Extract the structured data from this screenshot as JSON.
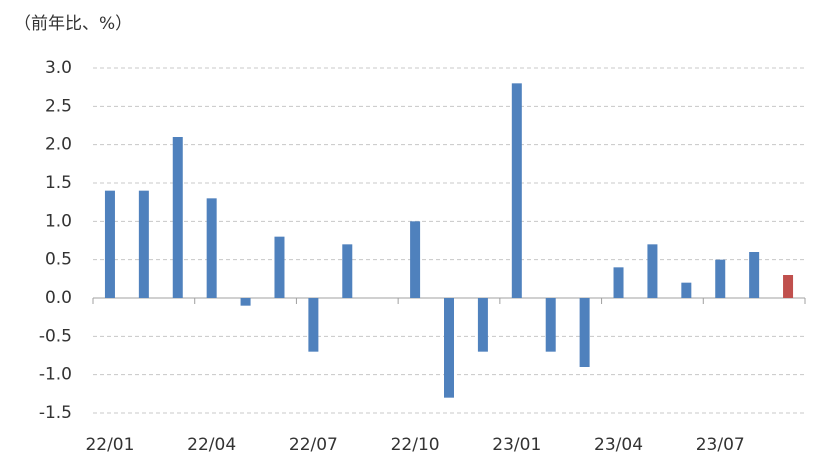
{
  "chart_data": {
    "type": "bar",
    "title": "（前年比、%）",
    "categories": [
      "22/01",
      null,
      null,
      "22/04",
      null,
      null,
      "22/07",
      null,
      null,
      "22/10",
      null,
      null,
      "23/01",
      null,
      null,
      "23/04",
      null,
      null,
      "23/07",
      null,
      null
    ],
    "values": [
      1.4,
      1.4,
      2.1,
      1.3,
      -0.1,
      0.8,
      -0.7,
      0.7,
      0.0,
      1.0,
      -1.3,
      -0.7,
      2.8,
      -0.7,
      -0.9,
      0.4,
      0.7,
      0.2,
      0.5,
      0.6,
      0.3
    ],
    "colors": [
      "#4f81bd",
      "#4f81bd",
      "#4f81bd",
      "#4f81bd",
      "#4f81bd",
      "#4f81bd",
      "#4f81bd",
      "#4f81bd",
      "#4f81bd",
      "#4f81bd",
      "#4f81bd",
      "#4f81bd",
      "#4f81bd",
      "#4f81bd",
      "#4f81bd",
      "#4f81bd",
      "#4f81bd",
      "#4f81bd",
      "#4f81bd",
      "#4f81bd",
      "#c0504d"
    ],
    "ylim": [
      -1.5,
      3.0
    ],
    "yticks": [
      {
        "value": -1.5,
        "label": "-1.5"
      },
      {
        "value": -1.0,
        "label": "-1.0"
      },
      {
        "value": -0.5,
        "label": "-0.5"
      },
      {
        "value": 0,
        "label": "0.0"
      },
      {
        "value": 0.5,
        "label": "0.5"
      },
      {
        "value": 1.0,
        "label": "1.0"
      },
      {
        "value": 1.5,
        "label": "1.5"
      },
      {
        "value": 2.0,
        "label": "2.0"
      },
      {
        "value": 2.5,
        "label": "2.5"
      },
      {
        "value": 3.0,
        "label": "3.0"
      }
    ],
    "grid": true
  }
}
